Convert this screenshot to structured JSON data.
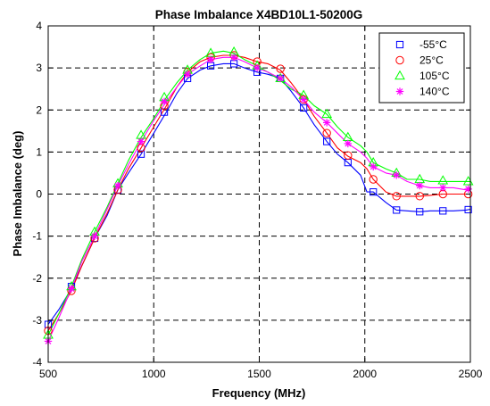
{
  "chart_data": {
    "type": "line",
    "title": "Phase Imbalance  X4BD10L1-50200G",
    "xlabel": "Frequency (MHz)",
    "ylabel": "Phase Imbalance (deg)",
    "xlim": [
      500,
      2500
    ],
    "ylim": [
      -4,
      4
    ],
    "xticks": [
      500,
      1000,
      1500,
      2000,
      2500
    ],
    "yticks": [
      -4,
      -3,
      -2,
      -1,
      0,
      1,
      2,
      3,
      4
    ],
    "grid": true,
    "legend_position": "top-right",
    "series": [
      {
        "name": "-55°C",
        "color": "#0000ff",
        "marker": "square",
        "line": [
          [
            500,
            -3.1
          ],
          [
            550,
            -2.75
          ],
          [
            610,
            -2.25
          ],
          [
            660,
            -1.7
          ],
          [
            720,
            -1.05
          ],
          [
            780,
            -0.5
          ],
          [
            830,
            0.1
          ],
          [
            880,
            0.5
          ],
          [
            940,
            0.95
          ],
          [
            1000,
            1.45
          ],
          [
            1060,
            1.95
          ],
          [
            1110,
            2.4
          ],
          [
            1160,
            2.75
          ],
          [
            1220,
            2.95
          ],
          [
            1270,
            3.05
          ],
          [
            1330,
            3.1
          ],
          [
            1380,
            3.1
          ],
          [
            1430,
            3.0
          ],
          [
            1490,
            2.9
          ],
          [
            1540,
            2.85
          ],
          [
            1600,
            2.75
          ],
          [
            1650,
            2.45
          ],
          [
            1710,
            2.05
          ],
          [
            1760,
            1.65
          ],
          [
            1820,
            1.25
          ],
          [
            1870,
            0.95
          ],
          [
            1920,
            0.75
          ],
          [
            1980,
            0.45
          ],
          [
            2010,
            0.05
          ],
          [
            2040,
            0.05
          ],
          [
            2100,
            -0.2
          ],
          [
            2150,
            -0.38
          ],
          [
            2200,
            -0.4
          ],
          [
            2260,
            -0.42
          ],
          [
            2310,
            -0.4
          ],
          [
            2370,
            -0.4
          ],
          [
            2420,
            -0.4
          ],
          [
            2480,
            -0.38
          ],
          [
            2500,
            -0.36
          ]
        ],
        "markers": [
          [
            500,
            -3.1
          ],
          [
            610,
            -2.2
          ],
          [
            720,
            -1.05
          ],
          [
            830,
            0.1
          ],
          [
            940,
            0.95
          ],
          [
            1050,
            1.95
          ],
          [
            1160,
            2.75
          ],
          [
            1270,
            3.05
          ],
          [
            1380,
            3.1
          ],
          [
            1490,
            2.9
          ],
          [
            1600,
            2.75
          ],
          [
            1710,
            2.05
          ],
          [
            1820,
            1.25
          ],
          [
            1920,
            0.75
          ],
          [
            2040,
            0.05
          ],
          [
            2150,
            -0.38
          ],
          [
            2260,
            -0.42
          ],
          [
            2370,
            -0.4
          ],
          [
            2490,
            -0.37
          ]
        ]
      },
      {
        "name": "25°C",
        "color": "#ff0000",
        "marker": "circle",
        "line": [
          [
            500,
            -3.25
          ],
          [
            550,
            -2.85
          ],
          [
            610,
            -2.3
          ],
          [
            660,
            -1.7
          ],
          [
            720,
            -1.05
          ],
          [
            780,
            -0.45
          ],
          [
            830,
            0.1
          ],
          [
            880,
            0.6
          ],
          [
            940,
            1.1
          ],
          [
            1000,
            1.6
          ],
          [
            1060,
            2.1
          ],
          [
            1110,
            2.55
          ],
          [
            1160,
            2.9
          ],
          [
            1220,
            3.15
          ],
          [
            1270,
            3.25
          ],
          [
            1330,
            3.3
          ],
          [
            1380,
            3.3
          ],
          [
            1430,
            3.25
          ],
          [
            1490,
            3.15
          ],
          [
            1540,
            3.1
          ],
          [
            1600,
            2.95
          ],
          [
            1650,
            2.65
          ],
          [
            1710,
            2.25
          ],
          [
            1760,
            1.85
          ],
          [
            1820,
            1.45
          ],
          [
            1870,
            1.1
          ],
          [
            1920,
            0.9
          ],
          [
            1980,
            0.75
          ],
          [
            2010,
            0.6
          ],
          [
            2040,
            0.35
          ],
          [
            2100,
            0.05
          ],
          [
            2150,
            -0.05
          ],
          [
            2200,
            -0.05
          ],
          [
            2260,
            -0.05
          ],
          [
            2310,
            -0.03
          ],
          [
            2370,
            0.0
          ],
          [
            2420,
            0.0
          ],
          [
            2480,
            0.0
          ],
          [
            2500,
            0.0
          ]
        ],
        "markers": [
          [
            500,
            -3.25
          ],
          [
            610,
            -2.3
          ],
          [
            720,
            -1.05
          ],
          [
            830,
            0.1
          ],
          [
            940,
            1.1
          ],
          [
            1050,
            2.1
          ],
          [
            1160,
            2.9
          ],
          [
            1270,
            3.25
          ],
          [
            1380,
            3.3
          ],
          [
            1490,
            3.15
          ],
          [
            1600,
            2.98
          ],
          [
            1710,
            2.25
          ],
          [
            1820,
            1.45
          ],
          [
            1920,
            0.92
          ],
          [
            2040,
            0.35
          ],
          [
            2150,
            -0.05
          ],
          [
            2260,
            -0.05
          ],
          [
            2370,
            0.0
          ],
          [
            2490,
            0.0
          ]
        ]
      },
      {
        "name": "105°C",
        "color": "#00ff00",
        "marker": "triangle",
        "line": [
          [
            500,
            -3.35
          ],
          [
            550,
            -2.85
          ],
          [
            610,
            -2.2
          ],
          [
            660,
            -1.55
          ],
          [
            720,
            -0.9
          ],
          [
            780,
            -0.3
          ],
          [
            830,
            0.25
          ],
          [
            880,
            0.8
          ],
          [
            940,
            1.35
          ],
          [
            1000,
            1.8
          ],
          [
            1060,
            2.3
          ],
          [
            1110,
            2.65
          ],
          [
            1160,
            2.95
          ],
          [
            1220,
            3.2
          ],
          [
            1270,
            3.35
          ],
          [
            1330,
            3.4
          ],
          [
            1380,
            3.35
          ],
          [
            1430,
            3.2
          ],
          [
            1490,
            3.05
          ],
          [
            1540,
            2.9
          ],
          [
            1600,
            2.7
          ],
          [
            1650,
            2.5
          ],
          [
            1710,
            2.35
          ],
          [
            1760,
            2.1
          ],
          [
            1820,
            1.9
          ],
          [
            1870,
            1.6
          ],
          [
            1920,
            1.35
          ],
          [
            1980,
            1.15
          ],
          [
            2010,
            1.0
          ],
          [
            2040,
            0.75
          ],
          [
            2100,
            0.6
          ],
          [
            2150,
            0.5
          ],
          [
            2200,
            0.35
          ],
          [
            2260,
            0.35
          ],
          [
            2310,
            0.3
          ],
          [
            2370,
            0.3
          ],
          [
            2420,
            0.3
          ],
          [
            2480,
            0.3
          ],
          [
            2500,
            0.3
          ]
        ],
        "markers": [
          [
            500,
            -3.35
          ],
          [
            610,
            -2.2
          ],
          [
            720,
            -0.9
          ],
          [
            830,
            0.25
          ],
          [
            940,
            1.4
          ],
          [
            1050,
            2.3
          ],
          [
            1160,
            2.95
          ],
          [
            1270,
            3.35
          ],
          [
            1380,
            3.38
          ],
          [
            1490,
            3.05
          ],
          [
            1600,
            2.75
          ],
          [
            1710,
            2.35
          ],
          [
            1820,
            1.9
          ],
          [
            1920,
            1.35
          ],
          [
            2040,
            0.75
          ],
          [
            2150,
            0.5
          ],
          [
            2260,
            0.35
          ],
          [
            2370,
            0.32
          ],
          [
            2490,
            0.3
          ]
        ]
      },
      {
        "name": "140°C",
        "color": "#ff00ff",
        "marker": "star",
        "line": [
          [
            500,
            -3.5
          ],
          [
            550,
            -2.95
          ],
          [
            610,
            -2.25
          ],
          [
            660,
            -1.6
          ],
          [
            720,
            -1.0
          ],
          [
            780,
            -0.35
          ],
          [
            830,
            0.2
          ],
          [
            880,
            0.7
          ],
          [
            940,
            1.25
          ],
          [
            1000,
            1.75
          ],
          [
            1060,
            2.2
          ],
          [
            1110,
            2.55
          ],
          [
            1160,
            2.85
          ],
          [
            1220,
            3.05
          ],
          [
            1270,
            3.2
          ],
          [
            1330,
            3.25
          ],
          [
            1380,
            3.25
          ],
          [
            1430,
            3.15
          ],
          [
            1490,
            3.0
          ],
          [
            1540,
            2.9
          ],
          [
            1600,
            2.75
          ],
          [
            1650,
            2.55
          ],
          [
            1710,
            2.25
          ],
          [
            1760,
            1.95
          ],
          [
            1820,
            1.7
          ],
          [
            1870,
            1.45
          ],
          [
            1920,
            1.2
          ],
          [
            1980,
            1.0
          ],
          [
            2010,
            0.85
          ],
          [
            2040,
            0.65
          ],
          [
            2100,
            0.5
          ],
          [
            2150,
            0.45
          ],
          [
            2200,
            0.3
          ],
          [
            2260,
            0.2
          ],
          [
            2310,
            0.15
          ],
          [
            2370,
            0.15
          ],
          [
            2420,
            0.15
          ],
          [
            2480,
            0.1
          ],
          [
            2500,
            0.1
          ]
        ],
        "markers": [
          [
            500,
            -3.5
          ],
          [
            610,
            -2.25
          ],
          [
            720,
            -1.0
          ],
          [
            830,
            0.2
          ],
          [
            940,
            1.25
          ],
          [
            1050,
            2.2
          ],
          [
            1160,
            2.85
          ],
          [
            1270,
            3.2
          ],
          [
            1380,
            3.25
          ],
          [
            1490,
            3.0
          ],
          [
            1600,
            2.75
          ],
          [
            1710,
            2.25
          ],
          [
            1820,
            1.7
          ],
          [
            1920,
            1.2
          ],
          [
            2040,
            0.65
          ],
          [
            2150,
            0.45
          ],
          [
            2260,
            0.2
          ],
          [
            2370,
            0.15
          ],
          [
            2490,
            0.12
          ]
        ]
      }
    ]
  }
}
